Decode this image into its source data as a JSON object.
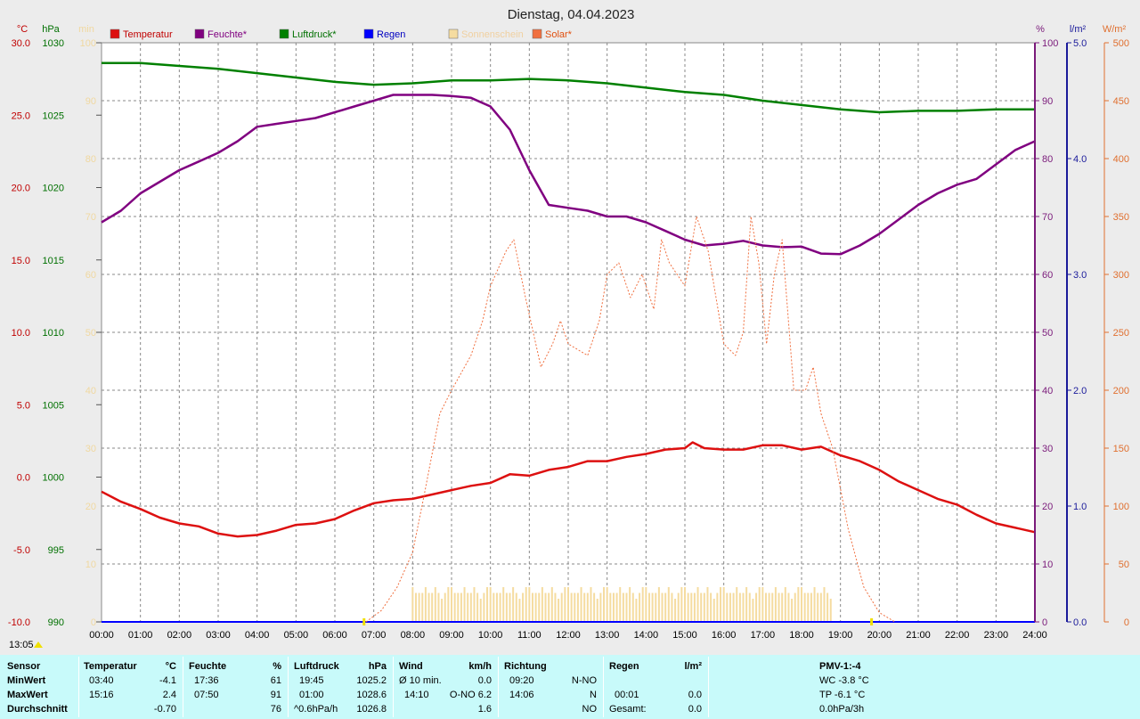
{
  "chart_data": {
    "type": "line",
    "title": "Dienstag, 04.04.2023",
    "time_labels": [
      "00:00",
      "01:00",
      "02:00",
      "03:00",
      "04:00",
      "05:00",
      "06:00",
      "07:00",
      "08:00",
      "09:00",
      "10:00",
      "11:00",
      "12:00",
      "13:00",
      "14:00",
      "15:00",
      "16:00",
      "17:00",
      "18:00",
      "19:00",
      "20:00",
      "21:00",
      "22:00",
      "23:00",
      "24:00"
    ],
    "axes": {
      "temperature": {
        "unit": "°C",
        "min": -10,
        "max": 30,
        "ticks": [
          "30.0",
          "25.0",
          "20.0",
          "15.0",
          "10.0",
          "5.0",
          "0.0",
          "-5.0",
          "-10.0"
        ],
        "color": "#c00000"
      },
      "pressure": {
        "unit": "hPa",
        "min": 990,
        "max": 1030,
        "ticks": [
          "1030",
          "1025",
          "1020",
          "1015",
          "1010",
          "1005",
          "1000",
          "995",
          "990"
        ],
        "color": "#007000"
      },
      "sunshine": {
        "unit": "min",
        "min": 0,
        "max": 100,
        "ticks": [
          "100",
          "90",
          "80",
          "70",
          "60",
          "50",
          "40",
          "30",
          "20",
          "10",
          "0"
        ],
        "color": "#f0d8a0"
      },
      "humidity": {
        "unit": "%",
        "min": 0,
        "max": 100,
        "ticks": [
          "100",
          "90",
          "80",
          "70",
          "60",
          "50",
          "40",
          "30",
          "20",
          "10",
          "0"
        ],
        "color": "#7a1a7a"
      },
      "rain": {
        "unit": "l/m²",
        "min": 0,
        "max": 5,
        "ticks": [
          "5.0",
          "4.0",
          "3.0",
          "2.0",
          "1.0",
          "0.0"
        ],
        "color": "#1a1a9a"
      },
      "solar": {
        "unit": "W/m²",
        "min": 0,
        "max": 500,
        "ticks": [
          "500",
          "450",
          "400",
          "350",
          "300",
          "250",
          "200",
          "150",
          "100",
          "50",
          "0"
        ],
        "color": "#e07030"
      }
    },
    "legend": [
      {
        "name": "Temperatur",
        "color": "#dd1010",
        "text_color": "#c00000"
      },
      {
        "name": "Feuchte*",
        "color": "#800080",
        "text_color": "#800080"
      },
      {
        "name": "Luftdruck*",
        "color": "#008000",
        "text_color": "#007000"
      },
      {
        "name": "Regen",
        "color": "#0000ff",
        "text_color": "#0000c0"
      },
      {
        "name": "Sonnenschein",
        "color": "#f5dca0",
        "text_color": "#f0d0a0"
      },
      {
        "name": "Solar*",
        "color": "#f07040",
        "text_color": "#e05010"
      }
    ],
    "series": [
      {
        "name": "Temperatur",
        "axis": "temperature",
        "color": "#dd1010",
        "points": [
          [
            0,
            -1
          ],
          [
            0.5,
            -1.7
          ],
          [
            1,
            -2.2
          ],
          [
            1.5,
            -2.8
          ],
          [
            2,
            -3.2
          ],
          [
            2.5,
            -3.4
          ],
          [
            3,
            -3.9
          ],
          [
            3.5,
            -4.1
          ],
          [
            4,
            -4.0
          ],
          [
            4.5,
            -3.7
          ],
          [
            5,
            -3.3
          ],
          [
            5.5,
            -3.2
          ],
          [
            6,
            -2.9
          ],
          [
            6.5,
            -2.3
          ],
          [
            7,
            -1.8
          ],
          [
            7.5,
            -1.6
          ],
          [
            8,
            -1.5
          ],
          [
            8.5,
            -1.2
          ],
          [
            9,
            -0.9
          ],
          [
            9.5,
            -0.6
          ],
          [
            10,
            -0.4
          ],
          [
            10.5,
            0.2
          ],
          [
            11,
            0.1
          ],
          [
            11.5,
            0.5
          ],
          [
            12,
            0.7
          ],
          [
            12.5,
            1.1
          ],
          [
            13,
            1.1
          ],
          [
            13.5,
            1.4
          ],
          [
            14,
            1.6
          ],
          [
            14.5,
            1.9
          ],
          [
            15,
            2.0
          ],
          [
            15.2,
            2.4
          ],
          [
            15.5,
            2.0
          ],
          [
            16,
            1.9
          ],
          [
            16.5,
            1.9
          ],
          [
            17,
            2.2
          ],
          [
            17.5,
            2.2
          ],
          [
            18,
            1.9
          ],
          [
            18.5,
            2.1
          ],
          [
            19,
            1.5
          ],
          [
            19.5,
            1.1
          ],
          [
            20,
            0.5
          ],
          [
            20.5,
            -0.3
          ],
          [
            21,
            -0.9
          ],
          [
            21.5,
            -1.5
          ],
          [
            22,
            -1.9
          ],
          [
            22.5,
            -2.6
          ],
          [
            23,
            -3.2
          ],
          [
            23.5,
            -3.5
          ],
          [
            24,
            -3.8
          ]
        ]
      },
      {
        "name": "Feuchte*",
        "axis": "humidity",
        "color": "#800080",
        "points": [
          [
            0,
            69
          ],
          [
            0.5,
            71
          ],
          [
            1,
            74
          ],
          [
            1.5,
            76
          ],
          [
            2,
            78
          ],
          [
            2.5,
            79.5
          ],
          [
            3,
            81
          ],
          [
            3.5,
            83
          ],
          [
            4,
            85.5
          ],
          [
            4.5,
            86
          ],
          [
            5,
            86.5
          ],
          [
            5.5,
            87
          ],
          [
            6,
            88
          ],
          [
            6.5,
            89
          ],
          [
            7,
            90
          ],
          [
            7.5,
            91
          ],
          [
            8,
            91
          ],
          [
            8.5,
            91
          ],
          [
            9,
            90.8
          ],
          [
            9.5,
            90.5
          ],
          [
            10,
            89
          ],
          [
            10.5,
            85
          ],
          [
            11,
            78
          ],
          [
            11.5,
            72
          ],
          [
            12,
            71.5
          ],
          [
            12.5,
            71
          ],
          [
            13,
            70
          ],
          [
            13.5,
            70
          ],
          [
            14,
            69
          ],
          [
            14.5,
            67.5
          ],
          [
            15,
            66
          ],
          [
            15.5,
            65
          ],
          [
            16,
            65.3
          ],
          [
            16.5,
            65.8
          ],
          [
            17,
            65
          ],
          [
            17.5,
            64.7
          ],
          [
            18,
            64.8
          ],
          [
            18.5,
            63.6
          ],
          [
            19,
            63.5
          ],
          [
            19.5,
            65
          ],
          [
            20,
            67
          ],
          [
            20.5,
            69.5
          ],
          [
            21,
            72
          ],
          [
            21.5,
            74
          ],
          [
            22,
            75.5
          ],
          [
            22.5,
            76.5
          ],
          [
            23,
            79
          ],
          [
            23.5,
            81.5
          ],
          [
            24,
            83
          ]
        ]
      },
      {
        "name": "Luftdruck*",
        "axis": "pressure",
        "color": "#008000",
        "points": [
          [
            0,
            1028.6
          ],
          [
            1,
            1028.6
          ],
          [
            2,
            1028.4
          ],
          [
            3,
            1028.2
          ],
          [
            4,
            1027.9
          ],
          [
            5,
            1027.6
          ],
          [
            6,
            1027.3
          ],
          [
            7,
            1027.1
          ],
          [
            8,
            1027.2
          ],
          [
            9,
            1027.4
          ],
          [
            10,
            1027.4
          ],
          [
            11,
            1027.5
          ],
          [
            12,
            1027.4
          ],
          [
            13,
            1027.2
          ],
          [
            14,
            1026.9
          ],
          [
            15,
            1026.6
          ],
          [
            16,
            1026.4
          ],
          [
            17,
            1026.0
          ],
          [
            18,
            1025.7
          ],
          [
            19,
            1025.4
          ],
          [
            20,
            1025.2
          ],
          [
            21,
            1025.3
          ],
          [
            22,
            1025.3
          ],
          [
            23,
            1025.4
          ],
          [
            24,
            1025.4
          ]
        ]
      },
      {
        "name": "Regen",
        "axis": "rain",
        "color": "#0000ff",
        "points": [
          [
            0,
            0
          ],
          [
            24,
            0
          ]
        ]
      },
      {
        "name": "Solar*",
        "axis": "solar",
        "color": "#f07040",
        "points": [
          [
            6.8,
            0
          ],
          [
            7.2,
            10
          ],
          [
            7.6,
            30
          ],
          [
            8,
            60
          ],
          [
            8.3,
            110
          ],
          [
            8.7,
            180
          ],
          [
            9,
            200
          ],
          [
            9.5,
            230
          ],
          [
            9.8,
            260
          ],
          [
            10,
            290
          ],
          [
            10.4,
            320
          ],
          [
            10.6,
            330
          ],
          [
            10.9,
            280
          ],
          [
            11.3,
            220
          ],
          [
            11.6,
            240
          ],
          [
            11.8,
            260
          ],
          [
            12,
            240
          ],
          [
            12.5,
            230
          ],
          [
            12.8,
            260
          ],
          [
            13,
            300
          ],
          [
            13.3,
            310
          ],
          [
            13.6,
            280
          ],
          [
            13.9,
            300
          ],
          [
            14.2,
            270
          ],
          [
            14.4,
            330
          ],
          [
            14.6,
            310
          ],
          [
            15,
            290
          ],
          [
            15.3,
            350
          ],
          [
            15.6,
            320
          ],
          [
            16,
            240
          ],
          [
            16.3,
            230
          ],
          [
            16.5,
            250
          ],
          [
            16.7,
            350
          ],
          [
            16.9,
            310
          ],
          [
            17.1,
            240
          ],
          [
            17.3,
            300
          ],
          [
            17.5,
            330
          ],
          [
            17.8,
            200
          ],
          [
            18.1,
            200
          ],
          [
            18.3,
            220
          ],
          [
            18.5,
            180
          ],
          [
            18.8,
            150
          ],
          [
            19.2,
            80
          ],
          [
            19.6,
            30
          ],
          [
            20,
            8
          ],
          [
            20.4,
            0
          ]
        ]
      }
    ],
    "sunshine_bars": {
      "start_hour": 8.0,
      "end_hour": 18.83,
      "step_minutes": 5,
      "pattern": [
        6,
        5,
        5,
        5,
        6,
        5,
        5,
        6,
        5,
        4,
        5,
        6
      ]
    },
    "markers": [
      {
        "name": "sunrise",
        "hour": 6.75,
        "color": "#f0e000"
      },
      {
        "name": "sunset",
        "hour": 19.8,
        "color": "#f0e000"
      }
    ],
    "now_marker": {
      "label": "13:05",
      "color": "#f0e000"
    }
  },
  "stats": {
    "sensor": {
      "header": "Sensor",
      "rows": [
        "MinWert",
        "MaxWert",
        "Durchschnitt"
      ]
    },
    "temperatur": {
      "header": "Temperatur",
      "unit": "°C",
      "min_time": "03:40",
      "min_value": "-4.1",
      "max_time": "15:16",
      "max_value": "2.4",
      "avg_value": "-0.70"
    },
    "feuchte": {
      "header": "Feuchte",
      "unit": "%",
      "min_time": "17:36",
      "min_value": "61",
      "max_time": "07:50",
      "max_value": "91",
      "avg_value": "76"
    },
    "luftdruck": {
      "header": "Luftdruck",
      "unit": "hPa",
      "min_time": "19:45",
      "min_value": "1025.2",
      "max_time": "01:00",
      "max_value": "1028.6",
      "avg_label": "^0.6hPa/h",
      "avg_value": "1026.8"
    },
    "wind": {
      "header": "Wind",
      "unit": "km/h",
      "row1_label": "Ø 10 min.",
      "row1_value": "0.0",
      "row2_time": "14:10",
      "row2_value": "O-NO 6.2",
      "row3_value": "1.6"
    },
    "richtung": {
      "header": "Richtung",
      "row1_time": "09:20",
      "row1_value": "N-NO",
      "row2_time": "14:06",
      "row2_value": "N",
      "row3_value": "NO"
    },
    "regen": {
      "header": "Regen",
      "unit": "l/m²",
      "row2_time": "00:01",
      "row2_value": "0.0",
      "row3_label": "Gesamt:",
      "row3_value": "0.0"
    },
    "pmv": {
      "header": "PMV-1:-4",
      "row1": "WC -3.8 °C",
      "row2": "TP -6.1 °C",
      "row3": "0.0hPa/3h"
    }
  }
}
